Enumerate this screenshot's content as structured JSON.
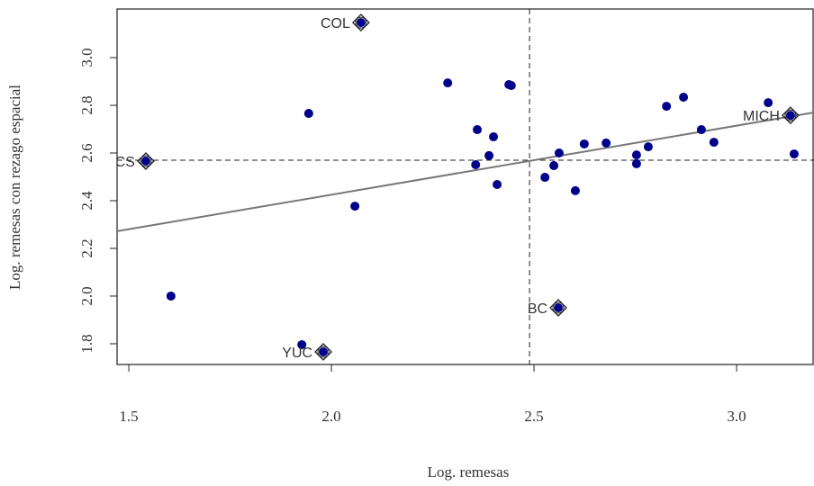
{
  "chart_data": {
    "type": "scatter",
    "x_label": "Log. remesas",
    "y_label": "Log. remesas con rezago espacial",
    "xlim": [
      1.471,
      3.191
    ],
    "ylim": [
      1.713,
      3.204
    ],
    "xticks": [
      1.5,
      {
        "value": 2,
        "label": "2.0"
      },
      2.5,
      {
        "value": 3,
        "label": "3.0"
      }
    ],
    "yticks": [
      1.8,
      {
        "value": 2,
        "label": "2.0"
      },
      2.2,
      2.4,
      2.6,
      2.8,
      {
        "value": 3,
        "label": "3.0"
      }
    ],
    "color": "#00008b",
    "x": [
      1.604,
      1.944,
      1.927,
      1.98,
      2.073,
      2.058,
      2.287,
      2.36,
      2.356,
      2.389,
      2.438,
      2.444,
      2.4,
      2.409,
      2.527,
      2.549,
      2.562,
      2.602,
      2.624,
      2.678,
      2.753,
      2.753,
      2.782,
      2.827,
      2.869,
      2.913,
      2.944,
      3.078,
      3.133,
      3.142,
      2.56,
      1.542
    ],
    "y": [
      2.0,
      2.766,
      1.796,
      1.766,
      3.147,
      2.377,
      2.894,
      2.698,
      2.551,
      2.589,
      2.887,
      2.883,
      2.668,
      2.468,
      2.498,
      2.547,
      2.6,
      2.442,
      2.638,
      2.642,
      2.592,
      2.555,
      2.626,
      2.796,
      2.834,
      2.698,
      2.645,
      2.811,
      2.758,
      2.596,
      1.951,
      2.566
    ],
    "point_labels": [
      null,
      null,
      null,
      "YUC",
      "COL",
      null,
      null,
      null,
      null,
      null,
      null,
      null,
      null,
      null,
      null,
      null,
      null,
      null,
      null,
      null,
      null,
      null,
      null,
      null,
      null,
      null,
      null,
      null,
      "MICH",
      null,
      "BC",
      "BCS"
    ],
    "x_mean": 2.489,
    "y_mean": 2.57,
    "fit_line": {
      "x": [
        1.471,
        3.191
      ],
      "y": [
        2.272,
        2.77
      ]
    }
  }
}
